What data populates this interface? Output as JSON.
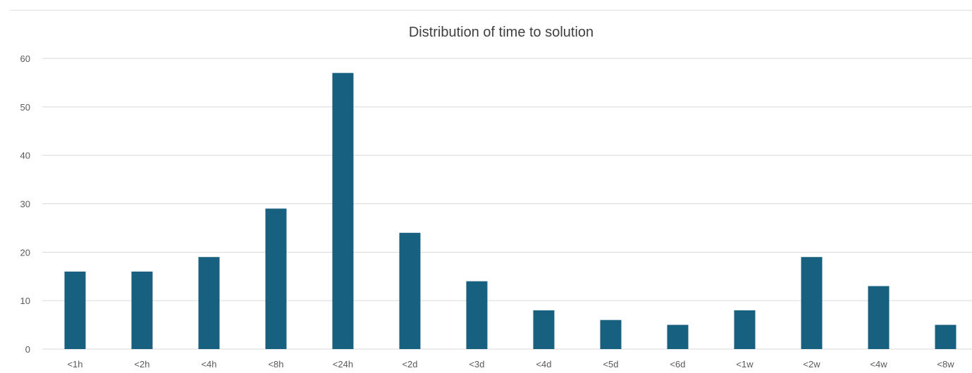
{
  "chart_data": {
    "type": "bar",
    "title": "Distribution of time to solution",
    "categories": [
      "<1h",
      "<2h",
      "<4h",
      "<8h",
      "<24h",
      "<2d",
      "<3d",
      "<4d",
      "<5d",
      "<6d",
      "<1w",
      "<2w",
      "<4w",
      "<8w"
    ],
    "values": [
      16,
      16,
      19,
      29,
      57,
      24,
      14,
      8,
      6,
      5,
      8,
      19,
      13,
      5
    ],
    "xlabel": "",
    "ylabel": "",
    "ylim": [
      0,
      60
    ],
    "yticks": [
      "0",
      "10",
      "20",
      "30",
      "40",
      "50",
      "60"
    ],
    "grid": true,
    "legend": "none",
    "bar_color": "#17607f",
    "grid_color": "#d9d9d9",
    "text_color": "#595959",
    "title_color": "#404040"
  }
}
